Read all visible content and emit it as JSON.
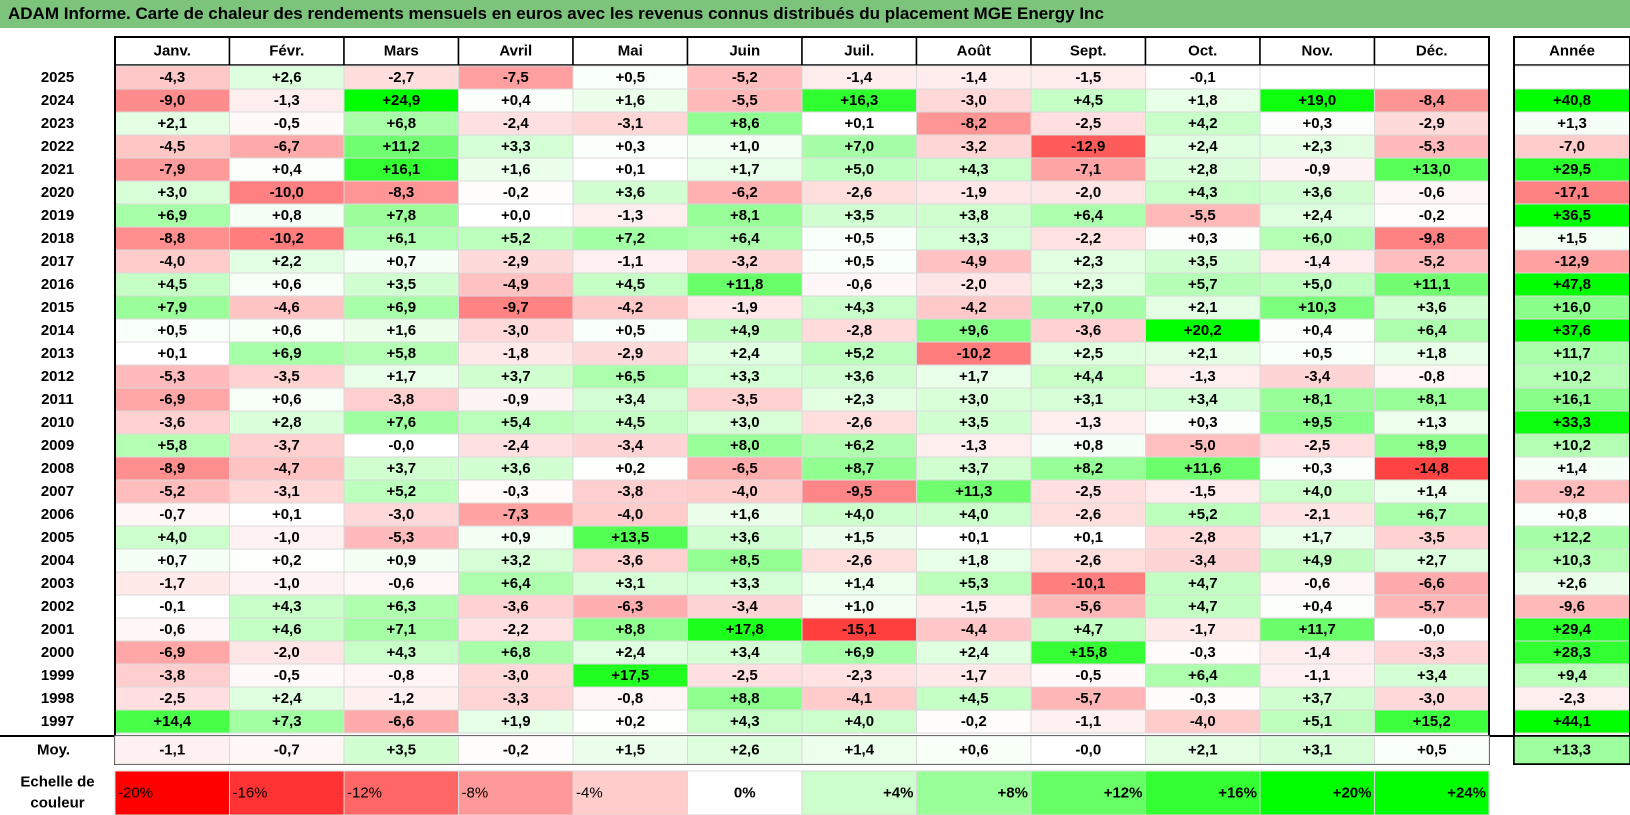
{
  "title": "ADAM Informe. Carte de chaleur des rendements mensuels en euros avec les revenus connus distribués du placement MGE Energy Inc",
  "chart_data": {
    "type": "heatmap",
    "months": [
      "Janv.",
      "Févr.",
      "Mars",
      "Avril",
      "Mai",
      "Juin",
      "Juil.",
      "Août",
      "Sept.",
      "Oct.",
      "Nov.",
      "Déc."
    ],
    "year_header": "Année",
    "rows": [
      {
        "year": "2025",
        "values": [
          "-4,3",
          "+2,6",
          "-2,7",
          "-7,5",
          "+0,5",
          "-5,2",
          "-1,4",
          "-1,4",
          "-1,5",
          "-0,1",
          "",
          ""
        ],
        "annual": ""
      },
      {
        "year": "2024",
        "values": [
          "-9,0",
          "-1,3",
          "+24,9",
          "+0,4",
          "+1,6",
          "-5,5",
          "+16,3",
          "-3,0",
          "+4,5",
          "+1,8",
          "+19,0",
          "-8,4"
        ],
        "annual": "+40,8"
      },
      {
        "year": "2023",
        "values": [
          "+2,1",
          "-0,5",
          "+6,8",
          "-2,4",
          "-3,1",
          "+8,6",
          "+0,1",
          "-8,2",
          "-2,5",
          "+4,2",
          "+0,3",
          "-2,9"
        ],
        "annual": "+1,3"
      },
      {
        "year": "2022",
        "values": [
          "-4,5",
          "-6,7",
          "+11,2",
          "+3,3",
          "+0,3",
          "+1,0",
          "+7,0",
          "-3,2",
          "-12,9",
          "+2,4",
          "+2,3",
          "-5,3"
        ],
        "annual": "-7,0"
      },
      {
        "year": "2021",
        "values": [
          "-7,9",
          "+0,4",
          "+16,1",
          "+1,6",
          "+0,1",
          "+1,7",
          "+5,0",
          "+4,3",
          "-7,1",
          "+2,8",
          "-0,9",
          "+13,0"
        ],
        "annual": "+29,5"
      },
      {
        "year": "2020",
        "values": [
          "+3,0",
          "-10,0",
          "-8,3",
          "-0,2",
          "+3,6",
          "-6,2",
          "-2,6",
          "-1,9",
          "-2,0",
          "+4,3",
          "+3,6",
          "-0,6"
        ],
        "annual": "-17,1"
      },
      {
        "year": "2019",
        "values": [
          "+6,9",
          "+0,8",
          "+7,8",
          "+0,0",
          "-1,3",
          "+8,1",
          "+3,5",
          "+3,8",
          "+6,4",
          "-5,5",
          "+2,4",
          "-0,2"
        ],
        "annual": "+36,5"
      },
      {
        "year": "2018",
        "values": [
          "-8,8",
          "-10,2",
          "+6,1",
          "+5,2",
          "+7,2",
          "+6,4",
          "+0,5",
          "+3,3",
          "-2,2",
          "+0,3",
          "+6,0",
          "-9,8"
        ],
        "annual": "+1,5"
      },
      {
        "year": "2017",
        "values": [
          "-4,0",
          "+2,2",
          "+0,7",
          "-2,9",
          "-1,1",
          "-3,2",
          "+0,5",
          "-4,9",
          "+2,3",
          "+3,5",
          "-1,4",
          "-5,2"
        ],
        "annual": "-12,9"
      },
      {
        "year": "2016",
        "values": [
          "+4,5",
          "+0,6",
          "+3,5",
          "-4,9",
          "+4,5",
          "+11,8",
          "-0,6",
          "-2,0",
          "+2,3",
          "+5,7",
          "+5,0",
          "+11,1"
        ],
        "annual": "+47,8"
      },
      {
        "year": "2015",
        "values": [
          "+7,9",
          "-4,6",
          "+6,9",
          "-9,7",
          "-4,2",
          "-1,9",
          "+4,3",
          "-4,2",
          "+7,0",
          "+2,1",
          "+10,3",
          "+3,6"
        ],
        "annual": "+16,0"
      },
      {
        "year": "2014",
        "values": [
          "+0,5",
          "+0,6",
          "+1,6",
          "-3,0",
          "+0,5",
          "+4,9",
          "-2,8",
          "+9,6",
          "-3,6",
          "+20,2",
          "+0,4",
          "+6,4"
        ],
        "annual": "+37,6"
      },
      {
        "year": "2013",
        "values": [
          "+0,1",
          "+6,9",
          "+5,8",
          "-1,8",
          "-2,9",
          "+2,4",
          "+5,2",
          "-10,2",
          "+2,5",
          "+2,1",
          "+0,5",
          "+1,8"
        ],
        "annual": "+11,7"
      },
      {
        "year": "2012",
        "values": [
          "-5,3",
          "-3,5",
          "+1,7",
          "+3,7",
          "+6,5",
          "+3,3",
          "+3,6",
          "+1,7",
          "+4,4",
          "-1,3",
          "-3,4",
          "-0,8"
        ],
        "annual": "+10,2"
      },
      {
        "year": "2011",
        "values": [
          "-6,9",
          "+0,6",
          "-3,8",
          "-0,9",
          "+3,4",
          "-3,5",
          "+2,3",
          "+3,0",
          "+3,1",
          "+3,4",
          "+8,1",
          "+8,1"
        ],
        "annual": "+16,1"
      },
      {
        "year": "2010",
        "values": [
          "-3,6",
          "+2,8",
          "+7,6",
          "+5,4",
          "+4,5",
          "+3,0",
          "-2,6",
          "+3,5",
          "-1,3",
          "+0,3",
          "+9,5",
          "+1,3"
        ],
        "annual": "+33,3"
      },
      {
        "year": "2009",
        "values": [
          "+5,8",
          "-3,7",
          "-0,0",
          "-2,4",
          "-3,4",
          "+8,0",
          "+6,2",
          "-1,3",
          "+0,8",
          "-5,0",
          "-2,5",
          "+8,9"
        ],
        "annual": "+10,2"
      },
      {
        "year": "2008",
        "values": [
          "-8,9",
          "-4,7",
          "+3,7",
          "+3,6",
          "+0,2",
          "-6,5",
          "+8,7",
          "+3,7",
          "+8,2",
          "+11,6",
          "+0,3",
          "-14,8"
        ],
        "annual": "+1,4"
      },
      {
        "year": "2007",
        "values": [
          "-5,2",
          "-3,1",
          "+5,2",
          "-0,3",
          "-3,8",
          "-4,0",
          "-9,5",
          "+11,3",
          "-2,5",
          "-1,5",
          "+4,0",
          "+1,4"
        ],
        "annual": "-9,2"
      },
      {
        "year": "2006",
        "values": [
          "-0,7",
          "+0,1",
          "-3,0",
          "-7,3",
          "-4,0",
          "+1,6",
          "+4,0",
          "+4,0",
          "-2,6",
          "+5,2",
          "-2,1",
          "+6,7"
        ],
        "annual": "+0,8"
      },
      {
        "year": "2005",
        "values": [
          "+4,0",
          "-1,0",
          "-5,3",
          "+0,9",
          "+13,5",
          "+3,6",
          "+1,5",
          "+0,1",
          "+0,1",
          "-2,8",
          "+1,7",
          "-3,5"
        ],
        "annual": "+12,2"
      },
      {
        "year": "2004",
        "values": [
          "+0,7",
          "+0,2",
          "+0,9",
          "+3,2",
          "-3,6",
          "+8,5",
          "-2,6",
          "+1,8",
          "-2,6",
          "-3,4",
          "+4,9",
          "+2,7"
        ],
        "annual": "+10,3"
      },
      {
        "year": "2003",
        "values": [
          "-1,7",
          "-1,0",
          "-0,6",
          "+6,4",
          "+3,1",
          "+3,3",
          "+1,4",
          "+5,3",
          "-10,1",
          "+4,7",
          "-0,6",
          "-6,6"
        ],
        "annual": "+2,6"
      },
      {
        "year": "2002",
        "values": [
          "-0,1",
          "+4,3",
          "+6,3",
          "-3,6",
          "-6,3",
          "-3,4",
          "+1,0",
          "-1,5",
          "-5,6",
          "+4,7",
          "+0,4",
          "-5,7"
        ],
        "annual": "-9,6"
      },
      {
        "year": "2001",
        "values": [
          "-0,6",
          "+4,6",
          "+7,1",
          "-2,2",
          "+8,8",
          "+17,8",
          "-15,1",
          "-4,4",
          "+4,7",
          "-1,7",
          "+11,7",
          "-0,0"
        ],
        "annual": "+29,4"
      },
      {
        "year": "2000",
        "values": [
          "-6,9",
          "-2,0",
          "+4,3",
          "+6,8",
          "+2,4",
          "+3,4",
          "+6,9",
          "+2,4",
          "+15,8",
          "-0,3",
          "-1,4",
          "-3,3"
        ],
        "annual": "+28,3"
      },
      {
        "year": "1999",
        "values": [
          "-3,8",
          "-0,5",
          "-0,8",
          "-3,0",
          "+17,5",
          "-2,5",
          "-2,3",
          "-1,7",
          "-0,5",
          "+6,4",
          "-1,1",
          "+3,4"
        ],
        "annual": "+9,4"
      },
      {
        "year": "1998",
        "values": [
          "-2,5",
          "+2,4",
          "-1,2",
          "-3,3",
          "-0,8",
          "+8,8",
          "-4,1",
          "+4,5",
          "-5,7",
          "-0,3",
          "+3,7",
          "-3,0"
        ],
        "annual": "-2,3"
      },
      {
        "year": "1997",
        "values": [
          "+14,4",
          "+7,3",
          "-6,6",
          "+1,9",
          "+0,2",
          "+4,3",
          "+4,0",
          "-0,2",
          "-1,1",
          "-4,0",
          "+5,1",
          "+15,2"
        ],
        "annual": "+44,1"
      }
    ],
    "average": {
      "label": "Moy.",
      "values": [
        "-1,1",
        "-0,7",
        "+3,5",
        "-0,2",
        "+1,5",
        "+2,6",
        "+1,4",
        "+0,6",
        "-0,0",
        "+2,1",
        "+3,1",
        "+0,5"
      ],
      "annual": "+13,3"
    },
    "scale": {
      "label_line1": "Echelle de",
      "label_line2": "couleur",
      "labels": [
        "-20%",
        "-16%",
        "-12%",
        "-8%",
        "-4%",
        "0%",
        "+4%",
        "+8%",
        "+12%",
        "+16%",
        "+20%",
        "+24%"
      ],
      "values": [
        -20,
        -16,
        -12,
        -8,
        -4,
        0,
        4,
        8,
        12,
        16,
        20,
        24
      ]
    },
    "colors": {
      "negative": "#ff0000",
      "neutral": "#ffffff",
      "positive": "#00ff00",
      "title_bg": "#7cc47c"
    }
  }
}
